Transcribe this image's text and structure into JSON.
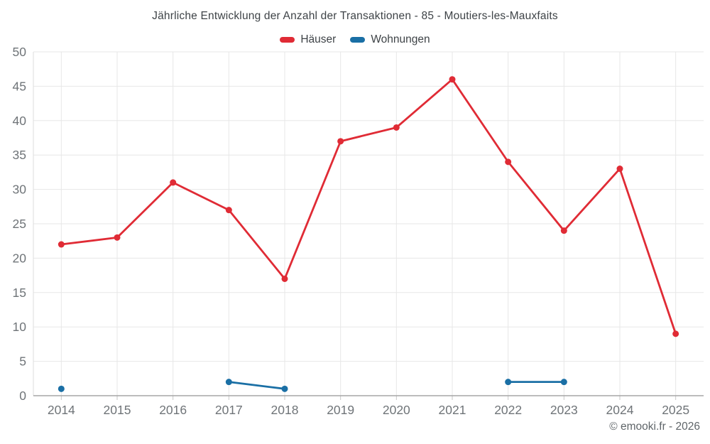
{
  "title": "Jährliche Entwicklung der Anzahl der Transaktionen - 85 - Moutiers-les-Mauxfaits",
  "footer": "© emooki.fr - 2026",
  "colors": {
    "hauser": "#e02b35",
    "wohnungen": "#1a6fa5",
    "grid": "#e7e7e7",
    "axis_line": "#a6a6a6",
    "tick_mark": "#c6c6c6",
    "tick_label": "#6f7478",
    "title_text": "#3e4347"
  },
  "chart_data": {
    "type": "line",
    "title": "Jährliche Entwicklung der Anzahl der Transaktionen - 85 - Moutiers-les-Mauxfaits",
    "categories": [
      "2014",
      "2015",
      "2016",
      "2017",
      "2018",
      "2019",
      "2020",
      "2021",
      "2022",
      "2023",
      "2024",
      "2025"
    ],
    "series": [
      {
        "name": "Häuser",
        "color": "#e02b35",
        "values": [
          22,
          23,
          31,
          27,
          17,
          37,
          39,
          46,
          34,
          24,
          33,
          9
        ]
      },
      {
        "name": "Wohnungen",
        "color": "#1a6fa5",
        "values": [
          1,
          null,
          null,
          2,
          1,
          null,
          null,
          null,
          2,
          2,
          null,
          null
        ]
      }
    ],
    "xlabel": "",
    "ylabel": "",
    "ylim": [
      0,
      50
    ],
    "ytick_step": 5,
    "grid": true,
    "legend_position": "top"
  }
}
